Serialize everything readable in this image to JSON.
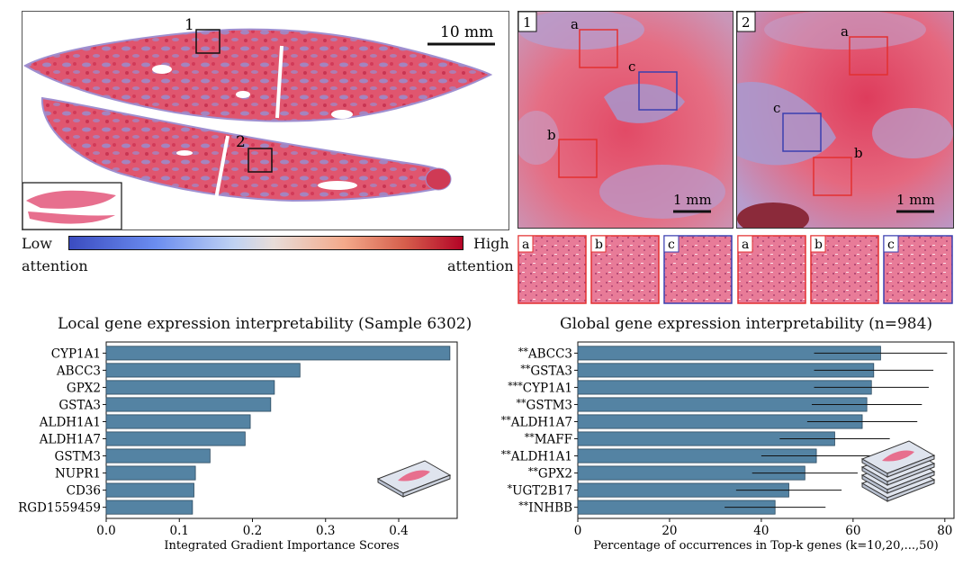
{
  "figure": {
    "scale_bar_main": "10 mm",
    "scale_bar_zoom1": "1 mm",
    "scale_bar_zoom2": "1 mm",
    "roi_labels": [
      "1",
      "2"
    ],
    "zoom_panel_labels": [
      "1",
      "2"
    ],
    "box_labels": [
      "a",
      "b",
      "c"
    ],
    "thumb_labels": [
      "a",
      "b",
      "c",
      "a",
      "b",
      "c"
    ],
    "colorbar": {
      "low_line1": "Low",
      "low_line2": "attention",
      "high_line1": "High",
      "high_line2": "attention",
      "low_color": "#3b4cc0",
      "mid_color": "#dddddd",
      "high_color": "#b40426"
    },
    "colors": {
      "bar": "#5483a3",
      "bar_edge": "#2b4a60",
      "tissue": "#e0566f",
      "tissue_blue": "#8f86c8",
      "box_red": "#e33030",
      "box_blue": "#3a3fb0",
      "he_pink": "#e76f8e"
    }
  },
  "chart_data": [
    {
      "type": "bar",
      "orientation": "horizontal",
      "title": "Local gene expression interpretability (Sample 6302)",
      "xlabel": "Integrated Gradient Importance Scores",
      "ylabel": "",
      "categories": [
        "CYP1A1",
        "ABCC3",
        "GPX2",
        "GSTA3",
        "ALDH1A1",
        "ALDH1A7",
        "GSTM3",
        "NUPR1",
        "CD36",
        "RGD1559459"
      ],
      "values": [
        0.47,
        0.265,
        0.23,
        0.225,
        0.197,
        0.19,
        0.142,
        0.122,
        0.12,
        0.118
      ],
      "xlim": [
        0,
        0.48
      ],
      "xticks": [
        "0.0",
        "0.1",
        "0.2",
        "0.3",
        "0.4"
      ],
      "grid": false
    },
    {
      "type": "bar",
      "orientation": "horizontal",
      "title": "Global gene expression interpretability (n=984)",
      "xlabel": "Percentage of occurrences in Top-k genes (k=10,20,...,50)",
      "ylabel": "",
      "categories": [
        "ABCC3",
        "GSTA3",
        "CYP1A1",
        "GSTM3",
        "ALDH1A7",
        "MAFF",
        "ALDH1A1",
        "GPX2",
        "UGT2B17",
        "INHBB"
      ],
      "significance": [
        "**",
        "**",
        "***",
        "**",
        "**",
        "**",
        "**",
        "**",
        "*",
        "**"
      ],
      "values": [
        66,
        64.5,
        64,
        63,
        62,
        56,
        52,
        49.5,
        46,
        43
      ],
      "errors": [
        14.5,
        13,
        12.5,
        12,
        12,
        12,
        12,
        11.5,
        11.5,
        11
      ],
      "xlim": [
        0,
        82
      ],
      "xticks": [
        "0",
        "20",
        "40",
        "60",
        "80"
      ],
      "grid": false
    }
  ]
}
